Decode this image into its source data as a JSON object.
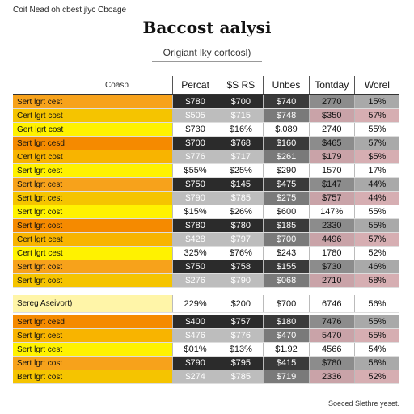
{
  "top_note": "Coit Nead oh cbest jlyc Cboage",
  "title": "Baccost aalysi",
  "subtitle": "Origiant lky cortcosl)",
  "table": {
    "label_header": "Coasp",
    "columns": [
      "Percat",
      "$S RS",
      "Unbes",
      "Tontday",
      "Worel"
    ],
    "rows": [
      {
        "label": "Sert lgrt cest",
        "color": "#f7a21b",
        "style": "dark",
        "values": [
          "$780",
          "$700",
          "$740",
          "2770",
          "15%"
        ]
      },
      {
        "label": "Cert lgrt cost",
        "color": "#f5c400",
        "style": "light",
        "values": [
          "$505",
          "$715",
          "$748",
          "$350",
          "57%"
        ]
      },
      {
        "label": "Gert lgrt cost",
        "color": "#fff200",
        "style": "plain",
        "values": [
          "$730",
          "$16%",
          "$.089",
          "2740",
          "55%"
        ]
      },
      {
        "label": "Sert lgrt cesd",
        "color": "#f58a00",
        "style": "dark",
        "values": [
          "$700",
          "$768",
          "$160",
          "$465",
          "57%"
        ]
      },
      {
        "label": "Cert lgrt cost",
        "color": "#f8b400",
        "style": "light",
        "values": [
          "$776",
          "$717",
          "$261",
          "$179",
          "$5%"
        ]
      },
      {
        "label": "Sert lgrt cest",
        "color": "#fff200",
        "style": "plain",
        "values": [
          "$55%",
          "$25%",
          "$290",
          "1570",
          "17%"
        ]
      },
      {
        "label": "Sert lgrt cest",
        "color": "#f7a21b",
        "style": "dark",
        "values": [
          "$750",
          "$145",
          "$475",
          "$147",
          "44%"
        ]
      },
      {
        "label": "Sert lgrt cest",
        "color": "#f5c400",
        "style": "light",
        "values": [
          "$790",
          "$785",
          "$275",
          "$757",
          "44%"
        ]
      },
      {
        "label": "Sert lgrt cost",
        "color": "#fff200",
        "style": "plain",
        "values": [
          "$15%",
          "$26%",
          "$600",
          "147%",
          "55%"
        ]
      },
      {
        "label": "Sert lgrt cost",
        "color": "#f58a00",
        "style": "dark",
        "values": [
          "$780",
          "$780",
          "$185",
          "2330",
          "55%"
        ]
      },
      {
        "label": "Cert lgrt cest",
        "color": "#f8b400",
        "style": "light",
        "values": [
          "$428",
          "$797",
          "$700",
          "4496",
          "57%"
        ]
      },
      {
        "label": "Cert lgrt cest",
        "color": "#fff200",
        "style": "plain",
        "values": [
          "325%",
          "$76%",
          "$243",
          "1780",
          "52%"
        ]
      },
      {
        "label": "Sert lgrt cost",
        "color": "#f7a21b",
        "style": "dark",
        "values": [
          "$750",
          "$758",
          "$155",
          "$730",
          "46%"
        ]
      },
      {
        "label": "Sert lgrt cost",
        "color": "#f5c400",
        "style": "light",
        "values": [
          "$276",
          "$790",
          "$068",
          "2710",
          "58%"
        ]
      },
      {
        "label": "Sereg Aseivort)",
        "color": "#fff5a8",
        "style": "plain",
        "values": [
          "229%",
          "$200",
          "$700",
          "6746",
          "56%"
        ]
      },
      {
        "label": "Sert lgrt cesd",
        "color": "#f58a00",
        "style": "dark",
        "values": [
          "$400",
          "$757",
          "$180",
          "7476",
          "55%"
        ]
      },
      {
        "label": "Sert lgrt cest",
        "color": "#f8b400",
        "style": "light",
        "values": [
          "$476",
          "$776",
          "$470",
          "5470",
          "55%"
        ]
      },
      {
        "label": "Sert lgrt cest",
        "color": "#fff200",
        "style": "plain",
        "values": [
          "$01%",
          "$13%",
          "$1.92",
          "4566",
          "54%"
        ]
      },
      {
        "label": "Sert lgrt cost",
        "color": "#f7a21b",
        "style": "dark",
        "values": [
          "$790",
          "$795",
          "$415",
          "$780",
          "58%"
        ]
      },
      {
        "label": "Bert lgrt cost",
        "color": "#f5c400",
        "style": "light",
        "values": [
          "$274",
          "$785",
          "$719",
          "2336",
          "52%"
        ]
      }
    ]
  },
  "bottom_note": "Soeced Slethre yeset."
}
